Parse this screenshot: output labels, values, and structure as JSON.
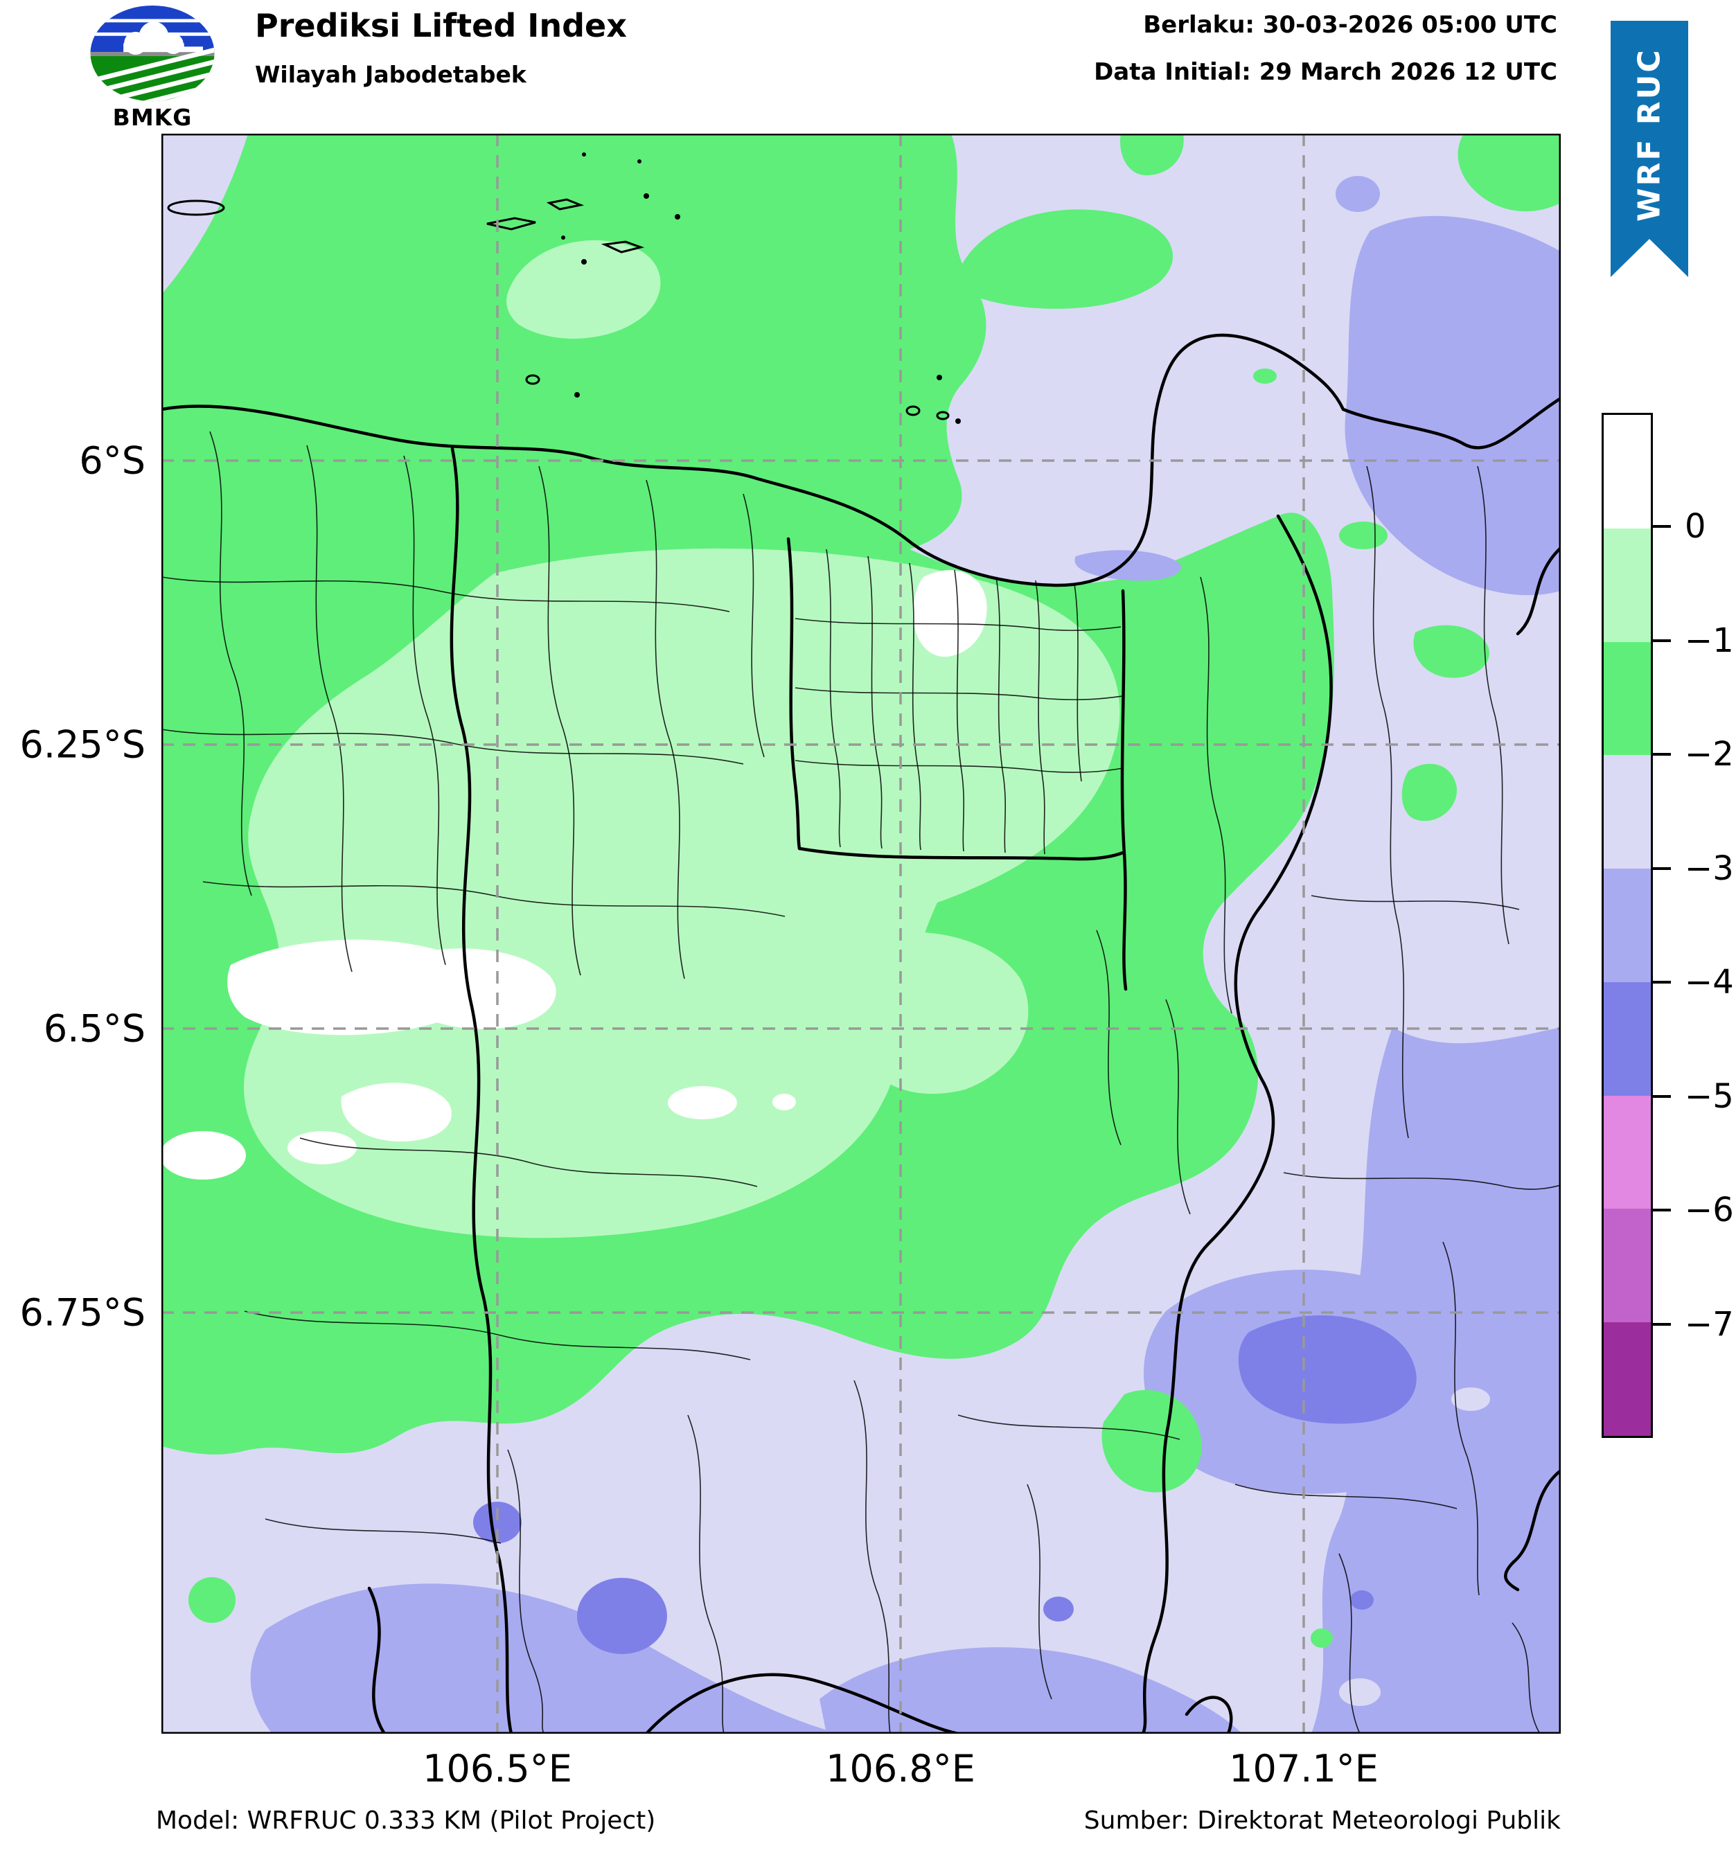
{
  "header": {
    "logo_label": "BMKG",
    "title": "Prediksi Lifted Index",
    "subtitle": "Wilayah Jabodetabek",
    "valid_time": "Berlaku: 30-03-2026 05:00 UTC",
    "data_initial": "Data Initial: 29 March 2026 12 UTC",
    "ribbon_label": "WRF RUC"
  },
  "map": {
    "y_axis_labels": [
      "6°S",
      "6.25°S",
      "6.5°S",
      "6.75°S"
    ],
    "x_axis_labels": [
      "106.5°E",
      "106.8°E",
      "107.1°E"
    ]
  },
  "colorbar": {
    "tick_labels": [
      "0",
      "−1",
      "−2",
      "−3",
      "−4",
      "−5",
      "−6",
      "−7"
    ],
    "segment_colors_top_to_bottom": [
      "#ffffff",
      "#b6f9c0",
      "#5fee7a",
      "#dadaf5",
      "#a9abf0",
      "#7e80e8",
      "#e287e2",
      "#c263cb",
      "#9c2d9c"
    ]
  },
  "footer": {
    "model": "Model: WRFRUC 0.333 KM (Pilot Project)",
    "source": "Sumber: Direktorat Meteorologi Publik"
  },
  "palette": {
    "ribbon_blue": "#0e72b2",
    "logo_blue": "#1b41c8",
    "logo_green": "#0c8a10",
    "sea_lavender": "#dadaf5",
    "green": "#5fee7a",
    "light_green": "#b6f9c0",
    "periwinkle": "#a9abf0",
    "blue_purple": "#7e80e8",
    "white": "#ffffff"
  }
}
